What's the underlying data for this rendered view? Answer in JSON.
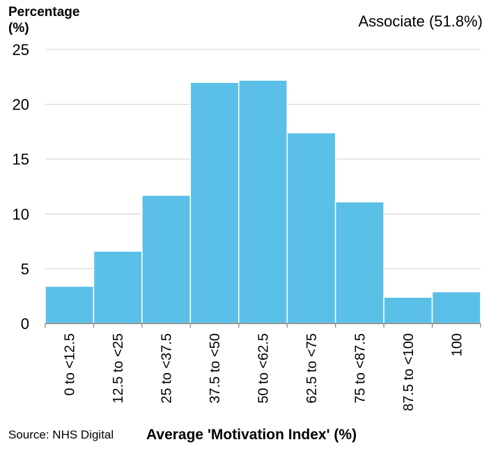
{
  "chart_data": {
    "type": "bar",
    "ylabel_line1": "Percentage",
    "ylabel_line2": "(%)",
    "xlabel": "Average 'Motivation Index' (%)",
    "annotation": "Associate (51.8%)",
    "source": "Source: NHS Digital",
    "categories": [
      "0 to <12.5",
      "12.5 to <25",
      "25 to <37.5",
      "37.5 to <50",
      "50 to <62.5",
      "62.5 to <75",
      "75 to <87.5",
      "87.5 to <100",
      "100"
    ],
    "values": [
      3.4,
      6.6,
      11.7,
      22.0,
      22.2,
      17.4,
      11.1,
      2.4,
      2.9
    ],
    "ylim": [
      0,
      25
    ],
    "yticks": [
      0,
      5,
      10,
      15,
      20,
      25
    ],
    "grid": true,
    "bar_color": "#5bc0e8",
    "grid_color": "#d9d9d9"
  }
}
